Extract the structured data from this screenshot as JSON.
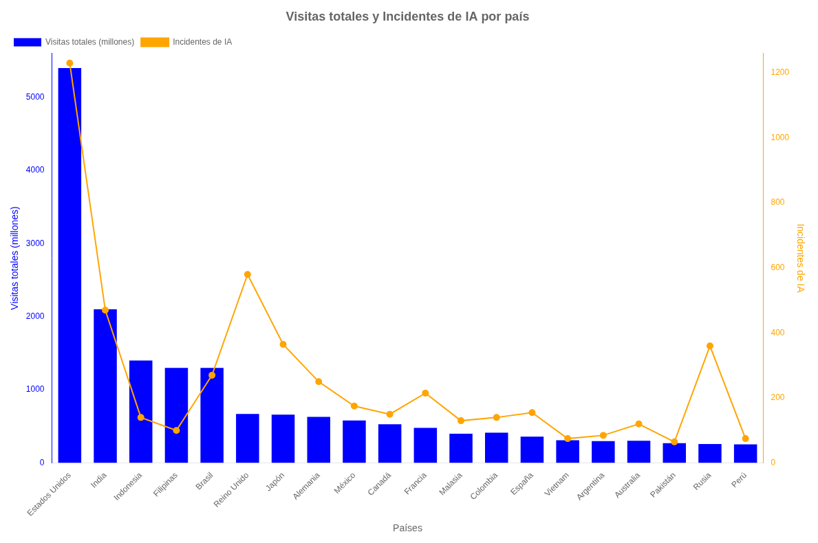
{
  "chart_data": {
    "type": "bar",
    "title": "Visitas totales y Incidentes de IA por país",
    "xlabel": "Países",
    "ylabel": "Visitas totales (millones)",
    "y2label": "Incidentes de IA",
    "categories": [
      "Estados Unidos",
      "India",
      "Indonesia",
      "Filipinas",
      "Brasil",
      "Reino Unido",
      "Japón",
      "Alemania",
      "México",
      "Canadá",
      "Francia",
      "Malasia",
      "Colombia",
      "España",
      "Vietnam",
      "Argentina",
      "Australia",
      "Pakistán",
      "Rusia",
      "Perú"
    ],
    "series": [
      {
        "name": "Visitas totales (millones)",
        "type": "bar",
        "color": "#0000ff",
        "values": [
          5400,
          2100,
          1400,
          1300,
          1300,
          670,
          660,
          630,
          580,
          530,
          480,
          400,
          415,
          360,
          310,
          300,
          305,
          270,
          260,
          255
        ]
      },
      {
        "name": "Incidentes de IA",
        "type": "line",
        "color": "#FFA500",
        "marker": "circle",
        "axis": "y2",
        "values": [
          1230,
          470,
          140,
          100,
          270,
          580,
          365,
          250,
          175,
          150,
          215,
          130,
          140,
          155,
          75,
          85,
          120,
          65,
          360,
          75
        ]
      }
    ],
    "ylim": [
      0,
      5600
    ],
    "yticks": [
      0,
      1000,
      2000,
      3000,
      4000,
      5000
    ],
    "y2lim": [
      0,
      1260
    ],
    "y2ticks": [
      0,
      200,
      400,
      600,
      800,
      1000,
      1200
    ],
    "grid": false,
    "legend": "upper left"
  }
}
